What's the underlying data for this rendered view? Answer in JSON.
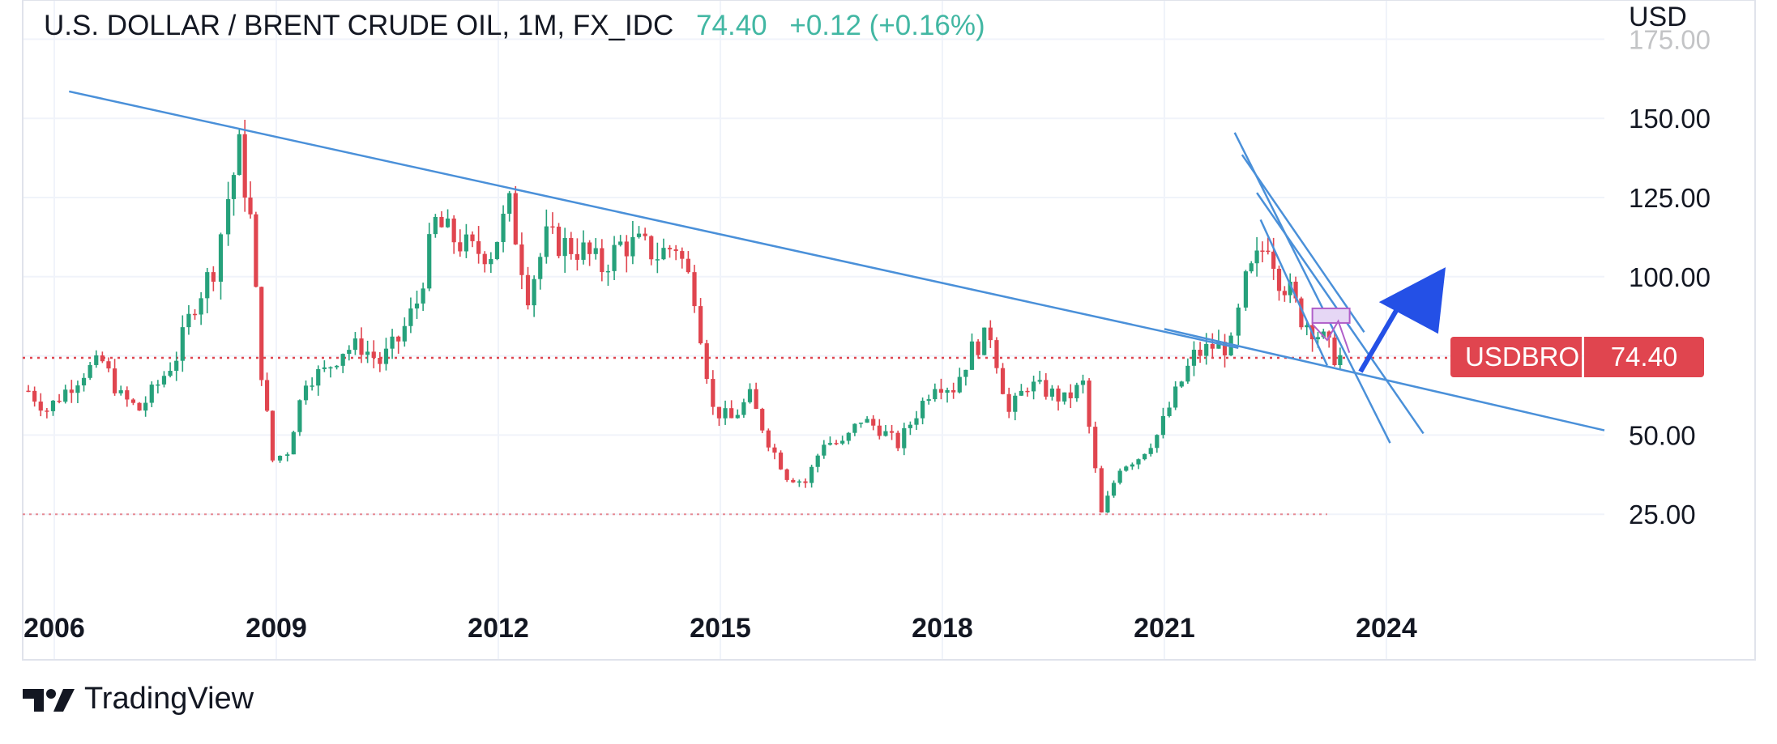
{
  "header": {
    "symbol": "U.S. DOLLAR / BRENT CRUDE OIL, 1M, FX_IDC",
    "price": "74.40",
    "change": "+0.12 (+0.16%)"
  },
  "currency_label": "USD",
  "price_tag": {
    "symbol": "USDBRO",
    "price": "74.40"
  },
  "brand": {
    "name": "TradingView"
  },
  "colors": {
    "up": "#26a17b",
    "down": "#e0454f",
    "trendline": "#4a90d9",
    "arrow": "#2450e6"
  },
  "chart_data": {
    "type": "candlestick",
    "x_ticks": [
      "2006",
      "2009",
      "2012",
      "2015",
      "2018",
      "2021",
      "2024"
    ],
    "y_ticks": [
      "25.00",
      "50.00",
      "75.00",
      "100.00",
      "125.00",
      "150.00",
      "175.00"
    ],
    "ylim": [
      0,
      180
    ],
    "xlim": [
      2005.6,
      2027.5
    ],
    "grid": true,
    "current_price": 74.4,
    "support_line": 25,
    "series": [
      {
        "x": 2005.65,
        "close": 64
      },
      {
        "x": 2005.9,
        "close": 58
      },
      {
        "x": 2006.15,
        "close": 64
      },
      {
        "x": 2006.4,
        "close": 70
      },
      {
        "x": 2006.65,
        "close": 73
      },
      {
        "x": 2006.9,
        "close": 62
      },
      {
        "x": 2007.15,
        "close": 58
      },
      {
        "x": 2007.4,
        "close": 66
      },
      {
        "x": 2007.65,
        "close": 75
      },
      {
        "x": 2007.9,
        "close": 92
      },
      {
        "x": 2008.15,
        "close": 103
      },
      {
        "x": 2008.35,
        "close": 125
      },
      {
        "x": 2008.5,
        "close": 140
      },
      {
        "x": 2008.65,
        "close": 118
      },
      {
        "x": 2008.8,
        "close": 70
      },
      {
        "x": 2008.95,
        "close": 42
      },
      {
        "x": 2009.15,
        "close": 45
      },
      {
        "x": 2009.4,
        "close": 68
      },
      {
        "x": 2009.65,
        "close": 70
      },
      {
        "x": 2009.9,
        "close": 77
      },
      {
        "x": 2010.15,
        "close": 78
      },
      {
        "x": 2010.4,
        "close": 73
      },
      {
        "x": 2010.65,
        "close": 80
      },
      {
        "x": 2010.9,
        "close": 92
      },
      {
        "x": 2011.15,
        "close": 117
      },
      {
        "x": 2011.4,
        "close": 112
      },
      {
        "x": 2011.65,
        "close": 108
      },
      {
        "x": 2011.9,
        "close": 108
      },
      {
        "x": 2012.15,
        "close": 122
      },
      {
        "x": 2012.4,
        "close": 95
      },
      {
        "x": 2012.65,
        "close": 112
      },
      {
        "x": 2012.9,
        "close": 110
      },
      {
        "x": 2013.15,
        "close": 108
      },
      {
        "x": 2013.4,
        "close": 103
      },
      {
        "x": 2013.65,
        "close": 110
      },
      {
        "x": 2013.9,
        "close": 110
      },
      {
        "x": 2014.15,
        "close": 107
      },
      {
        "x": 2014.4,
        "close": 110
      },
      {
        "x": 2014.65,
        "close": 95
      },
      {
        "x": 2014.9,
        "close": 58
      },
      {
        "x": 2015.15,
        "close": 55
      },
      {
        "x": 2015.4,
        "close": 62
      },
      {
        "x": 2015.65,
        "close": 48
      },
      {
        "x": 2015.9,
        "close": 37
      },
      {
        "x": 2016.15,
        "close": 35
      },
      {
        "x": 2016.4,
        "close": 48
      },
      {
        "x": 2016.65,
        "close": 47
      },
      {
        "x": 2016.9,
        "close": 55
      },
      {
        "x": 2017.15,
        "close": 52
      },
      {
        "x": 2017.4,
        "close": 47
      },
      {
        "x": 2017.65,
        "close": 57
      },
      {
        "x": 2017.9,
        "close": 67
      },
      {
        "x": 2018.15,
        "close": 65
      },
      {
        "x": 2018.4,
        "close": 77
      },
      {
        "x": 2018.65,
        "close": 82
      },
      {
        "x": 2018.9,
        "close": 57
      },
      {
        "x": 2019.15,
        "close": 66
      },
      {
        "x": 2019.4,
        "close": 64
      },
      {
        "x": 2019.65,
        "close": 61
      },
      {
        "x": 2019.9,
        "close": 66
      },
      {
        "x": 2020.15,
        "close": 25
      },
      {
        "x": 2020.4,
        "close": 40
      },
      {
        "x": 2020.65,
        "close": 43
      },
      {
        "x": 2020.9,
        "close": 50
      },
      {
        "x": 2021.15,
        "close": 63
      },
      {
        "x": 2021.4,
        "close": 75
      },
      {
        "x": 2021.65,
        "close": 78
      },
      {
        "x": 2021.9,
        "close": 78
      },
      {
        "x": 2022.1,
        "close": 98
      },
      {
        "x": 2022.25,
        "close": 105
      },
      {
        "x": 2022.4,
        "close": 112
      },
      {
        "x": 2022.55,
        "close": 100
      },
      {
        "x": 2022.7,
        "close": 95
      },
      {
        "x": 2022.85,
        "close": 87
      },
      {
        "x": 2023.0,
        "close": 84
      },
      {
        "x": 2023.15,
        "close": 80
      },
      {
        "x": 2023.3,
        "close": 75
      },
      {
        "x": 2023.45,
        "close": 74.4
      }
    ]
  }
}
